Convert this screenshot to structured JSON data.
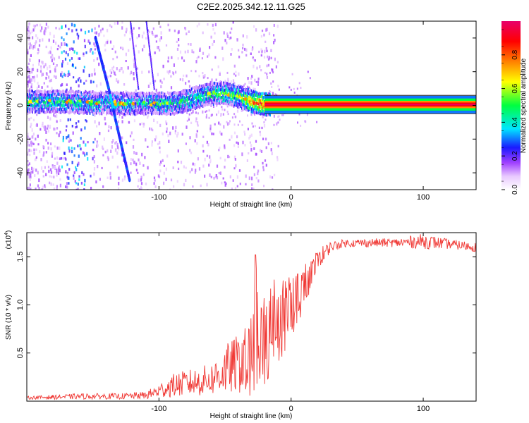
{
  "chart_data": [
    {
      "type": "heatmap",
      "title": "C2E2.2025.342.12.11.G25",
      "xlabel": "Height of straight line (km)",
      "ylabel": "Frequency (Hz)",
      "xlim": [
        -200,
        140
      ],
      "ylim": [
        -50,
        50
      ],
      "xticks": [
        {
          "value": -100,
          "label": "-100"
        },
        {
          "value": 0,
          "label": "0"
        },
        {
          "value": 100,
          "label": "100"
        }
      ],
      "yticks": [
        {
          "value": -40,
          "label": "-40"
        },
        {
          "value": -20,
          "label": "-20"
        },
        {
          "value": 0,
          "label": "0"
        },
        {
          "value": 20,
          "label": "20"
        },
        {
          "value": 40,
          "label": "40"
        }
      ],
      "colorbar": {
        "label": "Normalized spectral amplitude",
        "range": [
          0,
          1
        ],
        "ticks": [
          {
            "value": 0.0,
            "label": "0.0"
          },
          {
            "value": 0.2,
            "label": "0.2"
          },
          {
            "value": 0.4,
            "label": "0.4"
          },
          {
            "value": 0.6,
            "label": "0.6"
          },
          {
            "value": 0.8,
            "label": "0.8"
          }
        ],
        "colors": [
          "#ffffff",
          "#e8c8ff",
          "#a040ff",
          "#1a1aff",
          "#00e5ff",
          "#00ff40",
          "#ffff00",
          "#ff8000",
          "#ff0000",
          "#e8006a"
        ]
      },
      "ridge": {
        "name": "main spectral line",
        "x": [
          -200,
          -175,
          -150,
          -125,
          -110,
          -100,
          -90,
          -80,
          -70,
          -60,
          -50,
          -45,
          -40,
          -35,
          -30,
          -25,
          -20,
          -10,
          0,
          10,
          20,
          40,
          60,
          80,
          100,
          120,
          140
        ],
        "y": [
          2,
          2,
          1.5,
          1,
          1,
          1,
          1,
          2.5,
          5,
          7,
          7,
          6,
          5,
          3.5,
          2,
          1,
          0.5,
          0.5,
          0.5,
          0.5,
          0.5,
          0.5,
          0.5,
          0.5,
          0.5,
          0.5,
          0.5
        ],
        "amplitude": [
          0.4,
          0.4,
          0.35,
          0.35,
          0.35,
          0.45,
          0.4,
          0.4,
          0.4,
          0.45,
          0.5,
          0.5,
          0.55,
          0.6,
          0.75,
          0.85,
          0.9,
          0.92,
          0.95,
          0.97,
          0.98,
          0.98,
          0.98,
          0.98,
          0.98,
          0.98,
          0.98
        ]
      },
      "chirp": {
        "name": "steep diagonal streak",
        "points": [
          {
            "x": -148,
            "y": 40
          },
          {
            "x": -143,
            "y": 25
          },
          {
            "x": -138,
            "y": 10
          },
          {
            "x": -133,
            "y": -8
          },
          {
            "x": -128,
            "y": -25
          },
          {
            "x": -122,
            "y": -45
          }
        ]
      }
    },
    {
      "type": "line",
      "xlabel": "Height of straight line (km)",
      "ylabel": "SNR (10 * v/v)",
      "multiplier_label": "(x10",
      "multiplier_exponent": "4",
      "multiplier_close": ")",
      "color": "#f03a36",
      "xlim": [
        -200,
        140
      ],
      "ylim": [
        0,
        1.75
      ],
      "xticks": [
        {
          "value": -100,
          "label": "-100"
        },
        {
          "value": 0,
          "label": "0"
        },
        {
          "value": 100,
          "label": "100"
        }
      ],
      "yticks": [
        {
          "value": 0.5,
          "label": "0.5"
        },
        {
          "value": 1.0,
          "label": "1.0"
        },
        {
          "value": 1.5,
          "label": "1.5"
        }
      ],
      "envelope": {
        "x": [
          -200,
          -160,
          -130,
          -110,
          -100,
          -90,
          -80,
          -70,
          -60,
          -50,
          -40,
          -30,
          -25,
          -20,
          -15,
          -10,
          -5,
          0,
          5,
          10,
          15,
          20,
          25,
          30,
          40,
          60,
          80,
          100,
          120,
          140
        ],
        "min": [
          0.02,
          0.02,
          0.02,
          0.02,
          0.03,
          0.04,
          0.05,
          0.05,
          0.06,
          0.06,
          0.08,
          0.05,
          0.1,
          0.15,
          0.3,
          0.4,
          0.5,
          0.65,
          0.8,
          0.95,
          1.15,
          1.35,
          1.45,
          1.55,
          1.6,
          1.6,
          1.6,
          1.58,
          1.58,
          1.55
        ],
        "max": [
          0.05,
          0.08,
          0.08,
          0.1,
          0.18,
          0.28,
          0.32,
          0.35,
          0.4,
          0.58,
          0.7,
          1.05,
          1.52,
          1.2,
          1.25,
          1.3,
          1.32,
          1.33,
          1.38,
          1.45,
          1.48,
          1.58,
          1.62,
          1.66,
          1.68,
          1.69,
          1.69,
          1.74,
          1.68,
          1.65
        ]
      }
    }
  ]
}
